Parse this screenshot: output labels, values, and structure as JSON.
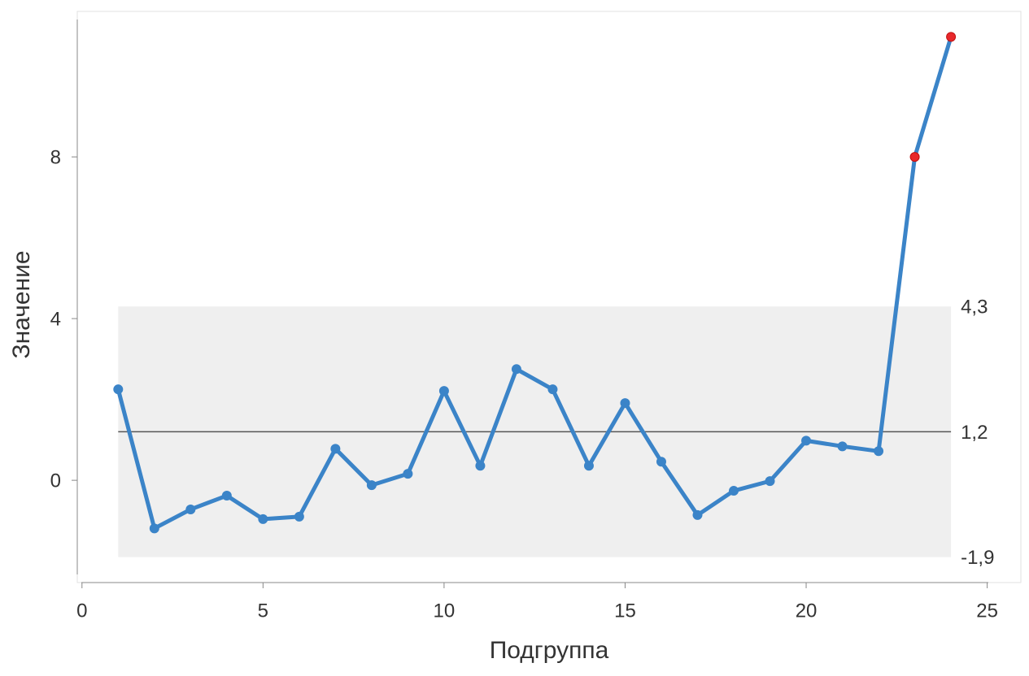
{
  "chart_data": {
    "type": "line",
    "x_label": "Подгруппа",
    "y_label": "Значение",
    "x": [
      1,
      2,
      3,
      4,
      5,
      6,
      7,
      8,
      9,
      10,
      11,
      12,
      13,
      14,
      15,
      16,
      17,
      18,
      19,
      20,
      21,
      22,
      23,
      24
    ],
    "series": [
      {
        "color": "#3b84c8",
        "values": [
          2.25,
          -1.19,
          -0.72,
          -0.38,
          -0.96,
          -0.9,
          0.78,
          -0.12,
          0.16,
          2.21,
          0.36,
          2.75,
          2.25,
          0.36,
          1.91,
          0.46,
          -0.86,
          -0.26,
          -0.02,
          0.98,
          0.84,
          0.72,
          8.0,
          10.97
        ]
      }
    ],
    "out_of_limit_color": "#e8282b",
    "ucl": {
      "value": 4.3,
      "label": "4,3"
    },
    "center": {
      "value": 1.2,
      "label": "1,2"
    },
    "lcl": {
      "value": -1.9,
      "label": "-1,9"
    },
    "band_color": "#efefef",
    "xlim": [
      -0.13,
      25.93
    ],
    "ylim": [
      -2.53,
      11.6
    ],
    "xticks": [
      0,
      5,
      10,
      15,
      20,
      25
    ],
    "yticks": [
      0,
      4,
      8
    ]
  }
}
